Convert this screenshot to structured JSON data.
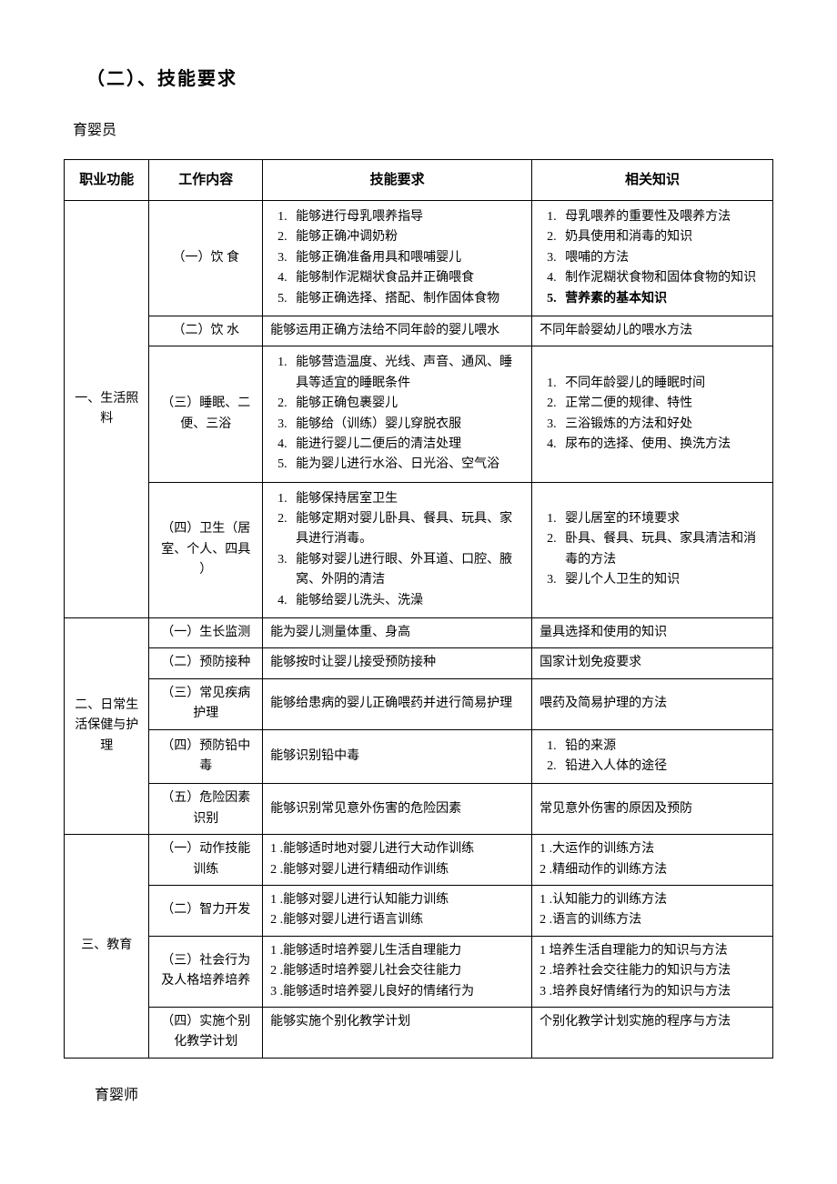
{
  "heading": "（二）、技能要求",
  "subtitle": "育婴员",
  "footer": "育婴师",
  "headers": {
    "func": "职业功能",
    "work": "工作内容",
    "skill": "技能要求",
    "know": "相关知识"
  },
  "func1": "一、生活照料",
  "func2": "二、日常生活保健与护理",
  "func3": "三、教育",
  "s1": {
    "w1": "（一）饮 食",
    "sk1": [
      "能够进行母乳喂养指导",
      "能够正确冲调奶粉",
      "能够正确准备用具和喂哺婴儿",
      "能够制作泥糊状食品并正确喂食",
      "能够正确选择、搭配、制作固体食物"
    ],
    "kn1": [
      "母乳喂养的重要性及喂养方法",
      "奶具使用和消毒的知识",
      "喂哺的方法",
      "制作泥糊状食物和固体食物的知识",
      "营养素的基本知识"
    ],
    "w2": "（二）饮  水",
    "sk2": "能够运用正确方法给不同年龄的婴儿喂水",
    "kn2": "不同年龄婴幼儿的喂水方法",
    "w3": "（三）睡眠、二便、三浴",
    "sk3": [
      "能够营造温度、光线、声音、通风、睡具等适宜的睡眠条件",
      "能够正确包裹婴儿",
      "能够给（训练）婴儿穿脱衣服",
      "能进行婴儿二便后的清洁处理",
      "能为婴儿进行水浴、日光浴、空气浴"
    ],
    "kn3": [
      "不同年龄婴儿的睡眠时间",
      "正常二便的规律、特性",
      "三浴锻炼的方法和好处",
      "尿布的选择、使用、换洗方法"
    ],
    "w4": "（四）卫生（居室、个人、四具 ）",
    "sk4": [
      "能够保持居室卫生",
      "能够定期对婴儿卧具、餐具、玩具、家具进行消毒。",
      "能够对婴儿进行眼、外耳道、口腔、腋窝、外阴的清洁",
      "能够给婴儿洗头、洗澡"
    ],
    "kn4": [
      "婴儿居室的环境要求",
      " 卧具、餐具、玩具、家具清洁和消毒的方法",
      "婴儿个人卫生的知识"
    ]
  },
  "s2": {
    "w1": "（一）生长监测",
    "sk1": "能为婴儿测量体重、身高",
    "kn1": "量具选择和使用的知识",
    "w2": "（二）预防接种",
    "sk2": "能够按时让婴儿接受预防接种",
    "kn2": "国家计划免疫要求",
    "w3": "（三）常见疾病护理",
    "sk3": "能够给患病的婴儿正确喂药并进行简易护理",
    "kn3": "喂药及简易护理的方法",
    "w4": "（四）预防铅中毒",
    "sk4": "能够识别铅中毒",
    "kn4": [
      "铅的来源",
      "铅进入人体的途径"
    ],
    "w5": "（五）危险因素识别",
    "sk5": "能够识别常见意外伤害的危险因素",
    "kn5": "常见意外伤害的原因及预防"
  },
  "s3": {
    "w1": "（一）动作技能训练",
    "sk1": [
      "1 .能够适时地对婴儿进行大动作训练",
      "2 .能够对婴儿进行精细动作训练"
    ],
    "kn1": [
      "1 .大运作的训练方法",
      "2 .精细动作的训练方法"
    ],
    "w2": "（二）智力开发",
    "sk2": [
      "1 .能够对婴儿进行认知能力训练",
      "2 .能够对婴儿进行语言训练"
    ],
    "kn2": [
      "1 .认知能力的训练方法",
      "2 .语言的训练方法"
    ],
    "w3": "（三）社会行为及人格培养培养",
    "sk3": [
      "1 .能够适时培养婴儿生活自理能力",
      "2 .能够适时培养婴儿社会交往能力",
      "3 .能够适时培养婴儿良好的情绪行为"
    ],
    "kn3": [
      "1 培养生活自理能力的知识与方法",
      "2 .培养社会交往能力的知识与方法",
      "3 .培养良好情绪行为的知识与方法"
    ],
    "w4": "（四）实施个别化教学计划",
    "sk4": "能够实施个别化教学计划",
    "kn4": "个别化教学计划实施的程序与方法"
  }
}
